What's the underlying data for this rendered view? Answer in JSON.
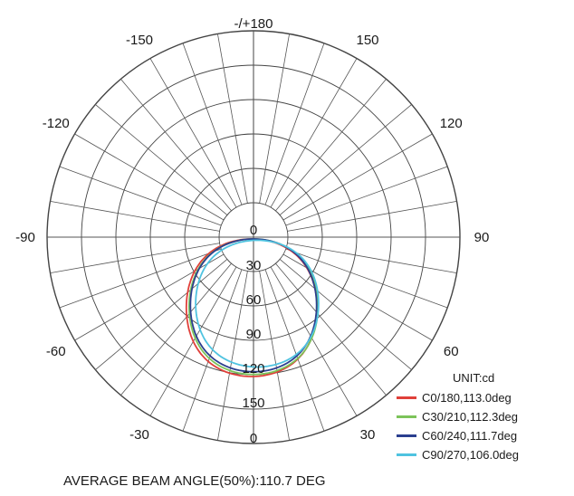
{
  "chart_data": {
    "type": "polar",
    "title": "",
    "unit_label": "UNIT:cd",
    "angle_labels": [
      {
        "angle": 180,
        "text": "-/+180"
      },
      {
        "angle": -150,
        "text": "-150"
      },
      {
        "angle": 150,
        "text": "150"
      },
      {
        "angle": -120,
        "text": "-120"
      },
      {
        "angle": 120,
        "text": "120"
      },
      {
        "angle": -90,
        "text": "-90"
      },
      {
        "angle": 90,
        "text": "90"
      },
      {
        "angle": -60,
        "text": "-60"
      },
      {
        "angle": 60,
        "text": "60"
      },
      {
        "angle": -30,
        "text": "-30"
      },
      {
        "angle": 30,
        "text": "30"
      },
      {
        "angle": 0,
        "text": "0"
      }
    ],
    "radial_ticks": [
      0,
      30,
      60,
      90,
      120,
      150
    ],
    "radial_max": 180,
    "grid": true,
    "legend_position": "bottom-right",
    "series": [
      {
        "name": "C0/180,113.0deg",
        "color": "#e0403a",
        "radius_scale": 1.0,
        "beam_angle": 113.0
      },
      {
        "name": "C30/210,112.3deg",
        "color": "#7cc35a",
        "radius_scale": 0.985,
        "beam_angle": 112.3
      },
      {
        "name": "C60/240,111.7deg",
        "color": "#2b3f8f",
        "radius_scale": 0.965,
        "beam_angle": 111.7
      },
      {
        "name": "C90/270,106.0deg",
        "color": "#4fc3e0",
        "radius_scale": 0.94,
        "beam_angle": 106.0
      }
    ],
    "footer": "AVERAGE BEAM ANGLE(50%):110.7 DEG"
  }
}
